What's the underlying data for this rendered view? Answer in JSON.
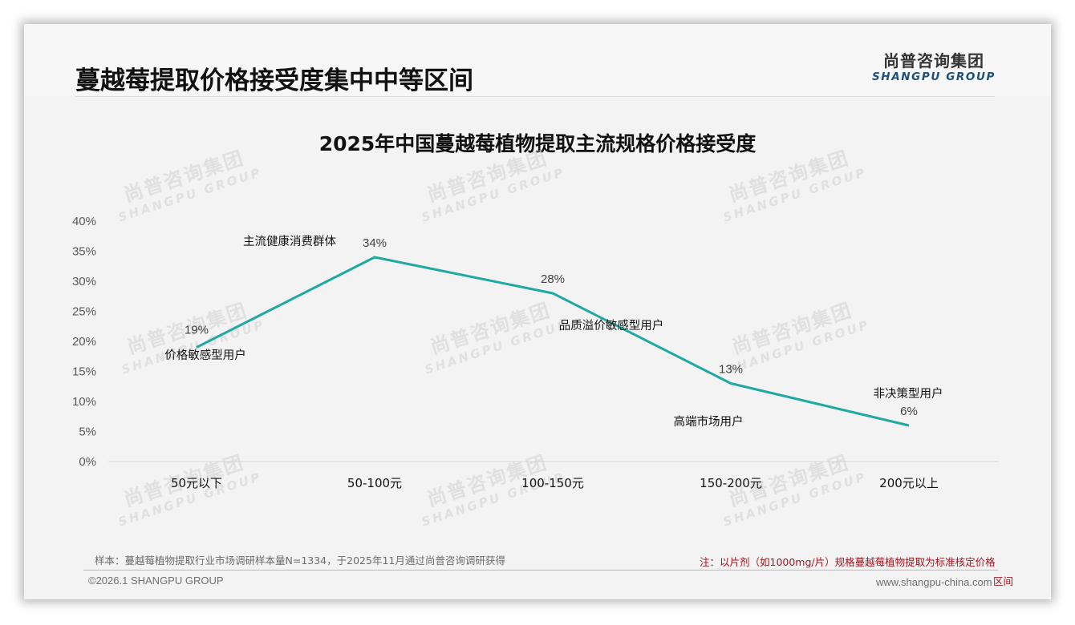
{
  "header": {
    "title": "蔓越莓提取价格接受度集中中等区间",
    "logo_cn": "尚普咨询集团",
    "logo_en": "SHANGPU GROUP"
  },
  "watermark": {
    "cn": "尚普咨询集团",
    "en": "SHANGPU GROUP"
  },
  "chart_data": {
    "type": "line",
    "title": "2025年中国蔓越莓植物提取主流规格价格接受度",
    "xlabel": "",
    "ylabel": "",
    "categories": [
      "50元以下",
      "50-100元",
      "100-150元",
      "150-200元",
      "200元以上"
    ],
    "values": [
      19,
      34,
      28,
      13,
      6
    ],
    "value_labels": [
      "19%",
      "34%",
      "28%",
      "13%",
      "6%"
    ],
    "annotations": [
      "价格敏感型用户",
      "主流健康消费群体",
      "品质溢价敏感型用户",
      "高端市场用户",
      "非决策型用户"
    ],
    "ylim": [
      0,
      40
    ],
    "yticks": [
      "0%",
      "5%",
      "10%",
      "15%",
      "20%",
      "25%",
      "30%",
      "35%",
      "40%"
    ],
    "grid": false,
    "legend": "none",
    "line_color": "#1fa9a3"
  },
  "footer": {
    "sample": "样本：蔓越莓植物提取行业市场调研样本量N=1334，于2025年11月通过尚普咨询调研获得",
    "copyright": "©2026.1 SHANGPU GROUP",
    "note": "注：以片剂（如1000mg/片）规格蔓越莓植物提取为标准核定价格",
    "note_wrap": "区间",
    "website": "www.shangpu-china.com"
  }
}
